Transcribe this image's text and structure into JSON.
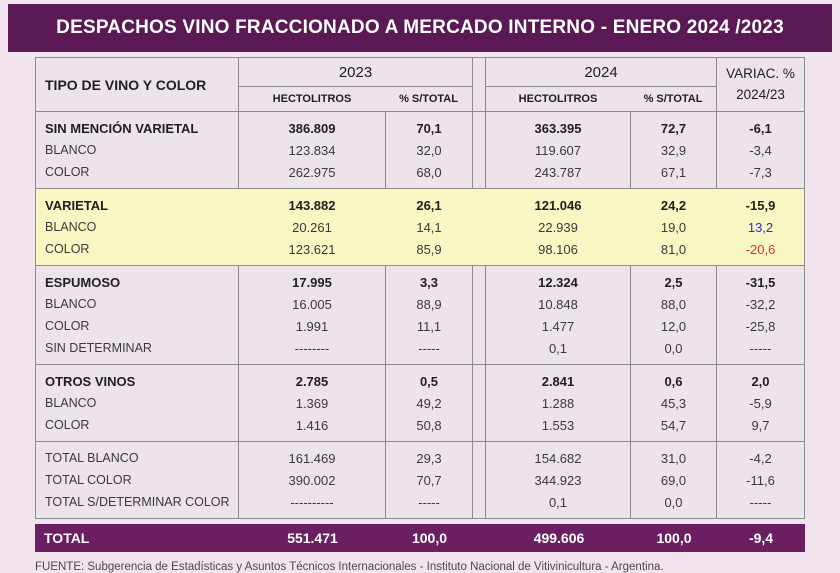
{
  "banner": {
    "title": "DESPACHOS VINO FRACCIONADO A MERCADO INTERNO - ENERO 2024 /2023"
  },
  "colors": {
    "banner_bg": "#5a1955",
    "total_band_bg": "#6b1e61",
    "page_bg": "#f2e4ee",
    "cell_bg": "#ece3eb",
    "highlight_bg": "#f8f6c2",
    "variac_positive_blue": "#2b2bd6",
    "variac_negative_red": "#e03131"
  },
  "table": {
    "col1_header": "TIPO DE VINO Y COLOR",
    "group_2023": "2023",
    "group_2024": "2024",
    "sub_headers": [
      "HECTOLITROS",
      "% S/TOTAL",
      "HECTOLITROS",
      "% S/TOTAL"
    ],
    "variac_header_line1": "VARIAC. %",
    "variac_header_line2": "2024/23",
    "sections": [
      {
        "highlight": false,
        "rows": [
          {
            "label": "SIN MENCIÓN VARIETAL",
            "bold": true,
            "values": [
              "386.809",
              "70,1",
              "363.395",
              "72,7",
              "-6,1"
            ]
          },
          {
            "label": "BLANCO",
            "bold": false,
            "values": [
              "123.834",
              "32,0",
              "119.607",
              "32,9",
              "-3,4"
            ]
          },
          {
            "label": "COLOR",
            "bold": false,
            "values": [
              "262.975",
              "68,0",
              "243.787",
              "67,1",
              "-7,3"
            ]
          }
        ]
      },
      {
        "highlight": true,
        "rows": [
          {
            "label": "VARIETAL",
            "bold": true,
            "values": [
              "143.882",
              "26,1",
              "121.046",
              "24,2",
              "-15,9"
            ]
          },
          {
            "label": "BLANCO",
            "bold": false,
            "values": [
              "20.261",
              "14,1",
              "22.939",
              "19,0",
              "13,2"
            ],
            "variac_color": "blue"
          },
          {
            "label": "COLOR",
            "bold": false,
            "values": [
              "123.621",
              "85,9",
              "98.106",
              "81,0",
              "-20,6"
            ],
            "variac_color": "red"
          }
        ]
      },
      {
        "highlight": false,
        "rows": [
          {
            "label": "ESPUMOSO",
            "bold": true,
            "values": [
              "17.995",
              "3,3",
              "12.324",
              "2,5",
              "-31,5"
            ]
          },
          {
            "label": "BLANCO",
            "bold": false,
            "values": [
              "16.005",
              "88,9",
              "10.848",
              "88,0",
              "-32,2"
            ]
          },
          {
            "label": "COLOR",
            "bold": false,
            "values": [
              "1.991",
              "11,1",
              "1.477",
              "12,0",
              "-25,8"
            ]
          },
          {
            "label": "SIN DETERMINAR",
            "bold": false,
            "values": [
              "--------",
              "-----",
              "0,1",
              "0,0",
              "-----"
            ]
          }
        ]
      },
      {
        "highlight": false,
        "rows": [
          {
            "label": "OTROS VINOS",
            "bold": true,
            "values": [
              "2.785",
              "0,5",
              "2.841",
              "0,6",
              "2,0"
            ]
          },
          {
            "label": "BLANCO",
            "bold": false,
            "values": [
              "1.369",
              "49,2",
              "1.288",
              "45,3",
              "-5,9"
            ]
          },
          {
            "label": "COLOR",
            "bold": false,
            "values": [
              "1.416",
              "50,8",
              "1.553",
              "54,7",
              "9,7"
            ]
          }
        ]
      },
      {
        "highlight": false,
        "rows": [
          {
            "label": "TOTAL BLANCO",
            "bold": false,
            "values": [
              "161.469",
              "29,3",
              "154.682",
              "31,0",
              "-4,2"
            ]
          },
          {
            "label": "TOTAL COLOR",
            "bold": false,
            "values": [
              "390.002",
              "70,7",
              "344.923",
              "69,0",
              "-11,6"
            ]
          },
          {
            "label": "TOTAL S/DETERMINAR COLOR",
            "bold": false,
            "values": [
              "----------",
              "-----",
              "0,1",
              "0,0",
              "-----"
            ]
          }
        ]
      }
    ],
    "total_row": {
      "label": "TOTAL",
      "values": [
        "551.471",
        "100,0",
        "499.606",
        "100,0",
        "-9,4"
      ]
    }
  },
  "footer": {
    "source": "FUENTE: Subgerencia de Estadísticas y Asuntos Técnicos Internacionales - Instituto Nacional de Vitivinicultura - Argentina."
  },
  "chart_data": {
    "type": "table",
    "title": "DESPACHOS VINO FRACCIONADO A MERCADO INTERNO - ENERO 2024 /2023",
    "columns": [
      "TIPO DE VINO Y COLOR",
      "2023 HECTOLITROS",
      "2023 % S/TOTAL",
      "2024 HECTOLITROS",
      "2024 % S/TOTAL",
      "VARIAC. % 2024/23"
    ],
    "rows": [
      [
        "SIN MENCIÓN VARIETAL",
        386809,
        70.1,
        363395,
        72.7,
        -6.1
      ],
      [
        "SIN MENCIÓN VARIETAL - BLANCO",
        123834,
        32.0,
        119607,
        32.9,
        -3.4
      ],
      [
        "SIN MENCIÓN VARIETAL - COLOR",
        262975,
        68.0,
        243787,
        67.1,
        -7.3
      ],
      [
        "VARIETAL",
        143882,
        26.1,
        121046,
        24.2,
        -15.9
      ],
      [
        "VARIETAL - BLANCO",
        20261,
        14.1,
        22939,
        19.0,
        13.2
      ],
      [
        "VARIETAL - COLOR",
        123621,
        85.9,
        98106,
        81.0,
        -20.6
      ],
      [
        "ESPUMOSO",
        17995,
        3.3,
        12324,
        2.5,
        -31.5
      ],
      [
        "ESPUMOSO - BLANCO",
        16005,
        88.9,
        10848,
        88.0,
        -32.2
      ],
      [
        "ESPUMOSO - COLOR",
        1991,
        11.1,
        1477,
        12.0,
        -25.8
      ],
      [
        "ESPUMOSO - SIN DETERMINAR",
        null,
        null,
        0.1,
        0.0,
        null
      ],
      [
        "OTROS VINOS",
        2785,
        0.5,
        2841,
        0.6,
        2.0
      ],
      [
        "OTROS VINOS - BLANCO",
        1369,
        49.2,
        1288,
        45.3,
        -5.9
      ],
      [
        "OTROS VINOS - COLOR",
        1416,
        50.8,
        1553,
        54.7,
        9.7
      ],
      [
        "TOTAL BLANCO",
        161469,
        29.3,
        154682,
        31.0,
        -4.2
      ],
      [
        "TOTAL COLOR",
        390002,
        70.7,
        344923,
        69.0,
        -11.6
      ],
      [
        "TOTAL S/DETERMINAR COLOR",
        null,
        null,
        0.1,
        0.0,
        null
      ],
      [
        "TOTAL",
        551471,
        100.0,
        499606,
        100.0,
        -9.4
      ]
    ]
  }
}
